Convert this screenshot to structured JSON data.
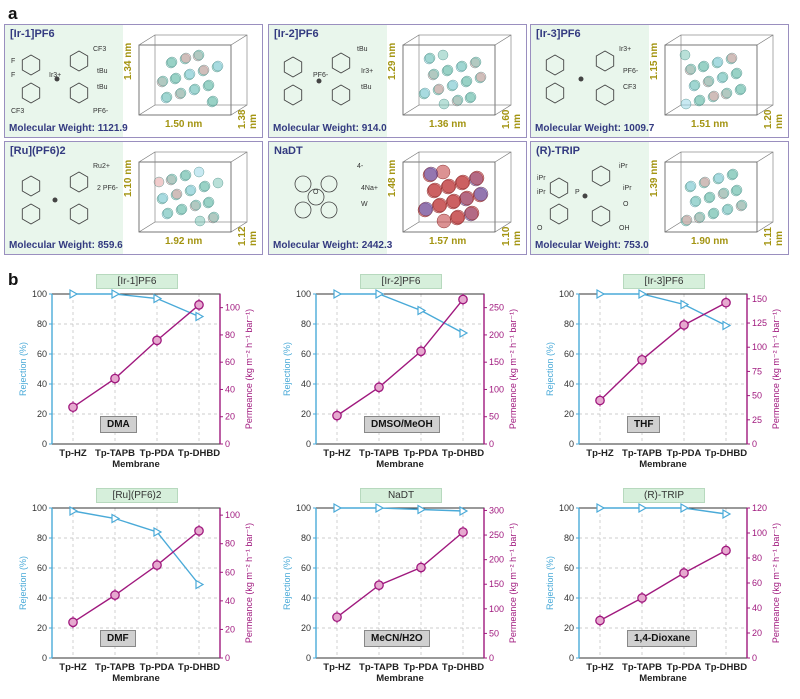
{
  "panel_a_label": "a",
  "panel_b_label": "b",
  "molecules": [
    {
      "name": "[Ir-1]PF6",
      "mw": "Molecular Weight: 1121.9",
      "dims": [
        "1.34 nm",
        "1.50 nm",
        "1.38 nm"
      ],
      "color": "#7fc7b8"
    },
    {
      "name": "[Ir-2]PF6",
      "mw": "Molecular Weight: 914.0",
      "dims": [
        "1.29 nm",
        "1.36 nm",
        "1.60 nm"
      ],
      "color": "#7fc7b8"
    },
    {
      "name": "[Ir-3]PF6",
      "mw": "Molecular Weight: 1009.7",
      "dims": [
        "1.15 nm",
        "1.51 nm",
        "1.20 nm"
      ],
      "color": "#7fc7b8"
    },
    {
      "name": "[Ru](PF6)2",
      "mw": "Molecular Weight: 859.6",
      "dims": [
        "1.10 nm",
        "1.92 nm",
        "1.12 nm"
      ],
      "color": "#7fc7b8"
    },
    {
      "name": "NaDT",
      "mw": "Molecular Weight: 2442.3",
      "dims": [
        "1.48 nm",
        "1.57 nm",
        "1.10 nm"
      ],
      "color": "#c0393b"
    },
    {
      "name": "(R)-TRIP",
      "mw": "Molecular Weight: 753.0",
      "dims": [
        "1.39 nm",
        "1.90 nm",
        "1.11 nm"
      ],
      "color": "#7fc7b8"
    }
  ],
  "structure_labels": {
    "ir1": [
      "CF3",
      "tBu",
      "tBu",
      "Ir3+",
      "PF6-",
      "CF3",
      "F",
      "F"
    ],
    "ir2": [
      "tBu",
      "Ir3+",
      "tBu",
      "PF6-"
    ],
    "ir3": [
      "Ir3+",
      "PF6-",
      "CF3"
    ],
    "ru": [
      "Ru2+",
      "2 PF6-"
    ],
    "nadt": [
      "4-",
      "4Na+",
      "W",
      "O"
    ],
    "trip": [
      "iPr",
      "iPr",
      "O",
      "P",
      "OH",
      "O",
      "iPr",
      "iPr"
    ]
  },
  "colors": {
    "rejection": "#4aaad8",
    "permeance": "#a0197e",
    "accent_frame": "#9a8fbf"
  },
  "chart_data": [
    {
      "type": "line",
      "title": "[Ir-1]PF6",
      "solvent": "DMA",
      "categories": [
        "Tp-HZ",
        "Tp-TAPB",
        "Tp-PDA",
        "Tp-DHBD"
      ],
      "xlabel": "Membrane",
      "series": [
        {
          "name": "Rejection (%)",
          "axis": "left",
          "values": [
            100,
            100,
            97,
            85
          ]
        },
        {
          "name": "Permeance (kg m-2 h-1 bar-1)",
          "axis": "right",
          "values": [
            27,
            48,
            76,
            102
          ]
        }
      ],
      "ylim_left": [
        0,
        100
      ],
      "yticks_left": [
        0,
        20,
        40,
        60,
        80,
        100
      ],
      "ylim_right": [
        0,
        110
      ],
      "yticks_right": [
        0,
        20,
        40,
        60,
        80,
        100
      ],
      "ylabel_left": "Rejection (%)",
      "ylabel_right": "Permeance (kg m⁻² h⁻¹ bar⁻¹)"
    },
    {
      "type": "line",
      "title": "[Ir-2]PF6",
      "solvent": "DMSO/MeOH",
      "categories": [
        "Tp-HZ",
        "Tp-TAPB",
        "Tp-PDA",
        "Tp-DHBD"
      ],
      "xlabel": "Membrane",
      "series": [
        {
          "name": "Rejection (%)",
          "axis": "left",
          "values": [
            100,
            100,
            89,
            74
          ]
        },
        {
          "name": "Permeance (kg m-2 h-1 bar-1)",
          "axis": "right",
          "values": [
            52,
            104,
            170,
            265
          ]
        }
      ],
      "ylim_left": [
        0,
        100
      ],
      "yticks_left": [
        0,
        20,
        40,
        60,
        80,
        100
      ],
      "ylim_right": [
        0,
        275
      ],
      "yticks_right": [
        0,
        50,
        100,
        150,
        200,
        250
      ],
      "ylabel_left": "Rejection (%)",
      "ylabel_right": "Permeance (kg m⁻² h⁻¹ bar⁻¹)"
    },
    {
      "type": "line",
      "title": "[Ir-3]PF6",
      "solvent": "THF",
      "categories": [
        "Tp-HZ",
        "Tp-TAPB",
        "Tp-PDA",
        "Tp-DHBD"
      ],
      "xlabel": "Membrane",
      "series": [
        {
          "name": "Rejection (%)",
          "axis": "left",
          "values": [
            100,
            100,
            93,
            79
          ]
        },
        {
          "name": "Permeance (kg m-2 h-1 bar-1)",
          "axis": "right",
          "values": [
            45,
            87,
            123,
            146
          ]
        }
      ],
      "ylim_left": [
        0,
        100
      ],
      "yticks_left": [
        0,
        20,
        40,
        60,
        80,
        100
      ],
      "ylim_right": [
        0,
        155
      ],
      "yticks_right": [
        0,
        25,
        50,
        75,
        100,
        125,
        150
      ],
      "ylabel_left": "Rejection (%)",
      "ylabel_right": "Permeance (kg m⁻² h⁻¹ bar⁻¹)"
    },
    {
      "type": "line",
      "title": "[Ru](PF6)2",
      "solvent": "DMF",
      "categories": [
        "Tp-HZ",
        "Tp-TAPB",
        "Tp-PDA",
        "Tp-DHBD"
      ],
      "xlabel": "Membrane",
      "series": [
        {
          "name": "Rejection (%)",
          "axis": "left",
          "values": [
            98,
            93,
            84,
            49
          ]
        },
        {
          "name": "Permeance (kg m-2 h-1 bar-1)",
          "axis": "right",
          "values": [
            25,
            44,
            65,
            89
          ]
        }
      ],
      "ylim_left": [
        0,
        100
      ],
      "yticks_left": [
        0,
        20,
        40,
        60,
        80,
        100
      ],
      "ylim_right": [
        0,
        105
      ],
      "yticks_right": [
        0,
        20,
        40,
        60,
        80,
        100
      ],
      "ylabel_left": "Rejection (%)",
      "ylabel_right": "Permeance (kg m⁻² h⁻¹ bar⁻¹)"
    },
    {
      "type": "line",
      "title": "NaDT",
      "solvent": "MeCN/H2O",
      "categories": [
        "Tp-HZ",
        "Tp-TAPB",
        "Tp-PDA",
        "Tp-DHBD"
      ],
      "xlabel": "Membrane",
      "series": [
        {
          "name": "Rejection (%)",
          "axis": "left",
          "values": [
            100,
            100,
            99,
            98
          ]
        },
        {
          "name": "Permeance (kg m-2 h-1 bar-1)",
          "axis": "right",
          "values": [
            83,
            148,
            184,
            256
          ]
        }
      ],
      "ylim_left": [
        0,
        100
      ],
      "yticks_left": [
        0,
        20,
        40,
        60,
        80,
        100
      ],
      "ylim_right": [
        0,
        305
      ],
      "yticks_right": [
        0,
        50,
        100,
        150,
        200,
        250,
        300
      ],
      "ylabel_left": "Rejection (%)",
      "ylabel_right": "Permeance (kg m⁻² h⁻¹ bar⁻¹)"
    },
    {
      "type": "line",
      "title": "(R)-TRIP",
      "solvent": "1,4-Dioxane",
      "categories": [
        "Tp-HZ",
        "Tp-TAPB",
        "Tp-PDA",
        "Tp-DHBD"
      ],
      "xlabel": "Membrane",
      "series": [
        {
          "name": "Rejection (%)",
          "axis": "left",
          "values": [
            100,
            100,
            100,
            96
          ]
        },
        {
          "name": "Permeance (kg m-2 h-1 bar-1)",
          "axis": "right",
          "values": [
            30,
            48,
            68,
            86
          ]
        }
      ],
      "ylim_left": [
        0,
        100
      ],
      "yticks_left": [
        0,
        20,
        40,
        60,
        80,
        100
      ],
      "ylim_right": [
        0,
        120
      ],
      "yticks_right": [
        0,
        20,
        40,
        60,
        80,
        100,
        120
      ],
      "ylabel_left": "Rejection (%)",
      "ylabel_right": "Permeance (kg m⁻² h⁻¹ bar⁻¹)"
    }
  ]
}
